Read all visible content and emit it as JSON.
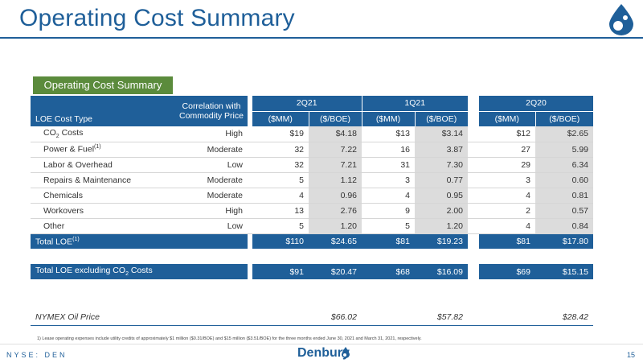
{
  "title": "Operating Cost Summary",
  "section_tab": "Operating Cost Summary",
  "header": {
    "col_type": "LOE Cost Type",
    "col_corr": "Correlation with Commodity Price",
    "periods": [
      "2Q21",
      "1Q21",
      "2Q20"
    ],
    "units": [
      "($MM)",
      "($/BOE)"
    ]
  },
  "rows": [
    {
      "type": "CO",
      "sub": "2",
      "tail": " Costs",
      "corr": "High",
      "v": [
        "$19",
        "$4.18",
        "$13",
        "$3.14",
        "$12",
        "$2.65"
      ]
    },
    {
      "type": "Power & Fuel",
      "sup": "(1)",
      "corr": "Moderate",
      "v": [
        "32",
        "7.22",
        "16",
        "3.87",
        "27",
        "5.99"
      ]
    },
    {
      "type": "Labor & Overhead",
      "corr": "Low",
      "v": [
        "32",
        "7.21",
        "31",
        "7.30",
        "29",
        "6.34"
      ]
    },
    {
      "type": "Repairs & Maintenance",
      "corr": "Moderate",
      "v": [
        "5",
        "1.12",
        "3",
        "0.77",
        "3",
        "0.60"
      ]
    },
    {
      "type": "Chemicals",
      "corr": "Moderate",
      "v": [
        "4",
        "0.96",
        "4",
        "0.95",
        "4",
        "0.81"
      ]
    },
    {
      "type": "Workovers",
      "corr": "High",
      "v": [
        "13",
        "2.76",
        "9",
        "2.00",
        "2",
        "0.57"
      ]
    },
    {
      "type": "Other",
      "corr": "Low",
      "v": [
        "5",
        "1.20",
        "5",
        "1.20",
        "4",
        "0.84"
      ]
    }
  ],
  "total": {
    "label": "Total LOE",
    "sup": "(1)",
    "v": [
      "$110",
      "$24.65",
      "$81",
      "$19.23",
      "$81",
      "$17.80"
    ]
  },
  "total_ex": {
    "label": "Total LOE excluding CO",
    "sub": "2",
    "tail": " Costs",
    "v": [
      "$91",
      "$20.47",
      "$68",
      "$16.09",
      "$69",
      "$15.15"
    ]
  },
  "nymex": {
    "label": "NYMEX Oil Price",
    "v": [
      "$66.02",
      "$57.82",
      "$28.42"
    ]
  },
  "footnote": "1) Lease operating expenses include utility credits of approximately $1 million ($0.31/BOE) and $15 million ($3.51/BOE) for the three months ended June 30, 2021 and March 31, 2021, respectively.",
  "footer": {
    "ticker": "NYSE: DEN",
    "brand": "Denbury",
    "page": "15"
  },
  "colors": {
    "blue": "#1f5f99",
    "green": "#5b8b3c",
    "shade": "#dcdcdc"
  }
}
